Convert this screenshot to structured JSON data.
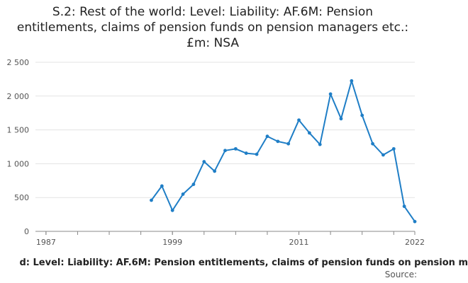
{
  "title": "S.2: Rest of the world: Level: Liability: AF.6M: Pension entitlements, claims of pension funds on pension managers etc.: £m: NSA",
  "legend_text": "d: Level: Liability: AF.6M: Pension entitlements, claims of pension funds on pension m",
  "source_text": "Source:",
  "colors": {
    "series": "#1f7ec6",
    "grid": "#e3e3e3",
    "axis": "#888888"
  },
  "chart_data": {
    "type": "line",
    "title": "S.2: Rest of the world: Level: Liability: AF.6M: Pension entitlements, claims of pension funds on pension managers etc.: £m: NSA",
    "xlabel": "",
    "ylabel": "",
    "xlim": [
      1986,
      2022
    ],
    "ylim": [
      0,
      2500
    ],
    "x_ticks": [
      "1987",
      "1999",
      "2011",
      "2022"
    ],
    "y_ticks": [
      "0",
      "500",
      "1 000",
      "1 500",
      "2 000",
      "2 500"
    ],
    "grid": true,
    "series": [
      {
        "name": "",
        "x": [
          1997,
          1998,
          1999,
          2000,
          2001,
          2002,
          2003,
          2004,
          2005,
          2006,
          2007,
          2008,
          2009,
          2010,
          2011,
          2012,
          2013,
          2014,
          2015,
          2016,
          2017,
          2018,
          2019,
          2020,
          2021,
          2022
        ],
        "values": [
          460,
          670,
          310,
          550,
          695,
          1030,
          890,
          1195,
          1220,
          1155,
          1140,
          1405,
          1330,
          1295,
          1645,
          1455,
          1285,
          2030,
          1665,
          2225,
          1715,
          1295,
          1130,
          1220,
          370,
          145
        ]
      }
    ]
  }
}
